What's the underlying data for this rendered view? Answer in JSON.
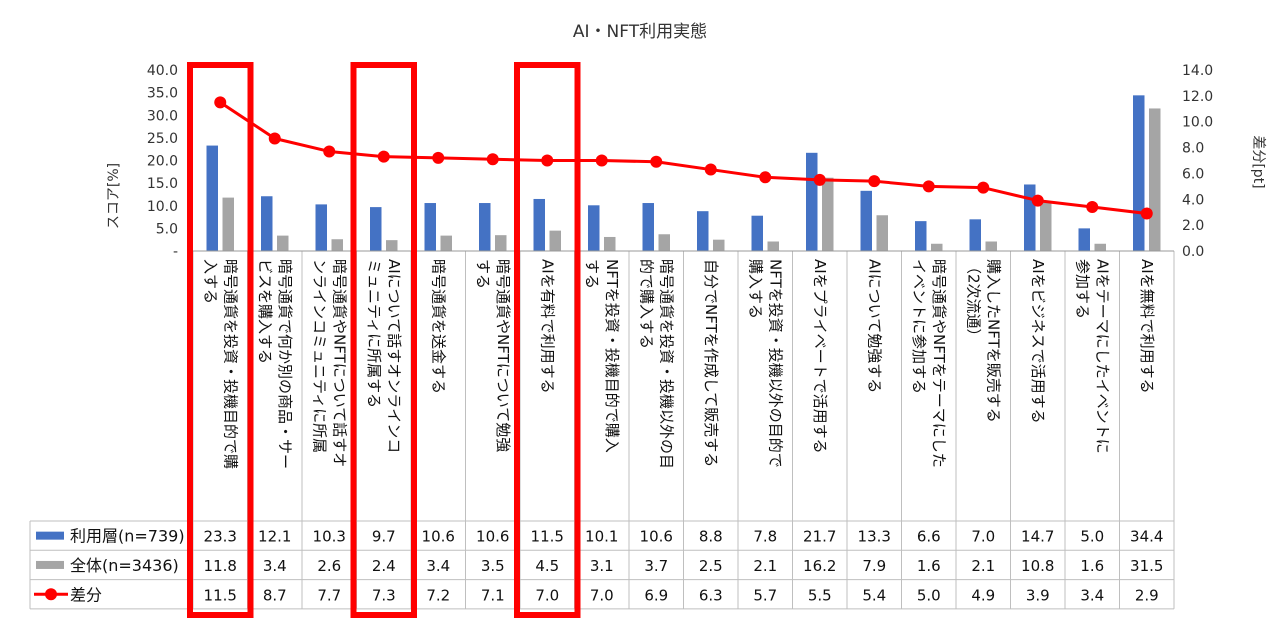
{
  "chart_data": {
    "type": "bar+line",
    "title": "AI・NFT利用実態",
    "ylabel": "スコア[%]",
    "y2label": "差分[pt]",
    "ylim": [
      0,
      40
    ],
    "y2lim": [
      0,
      14
    ],
    "y_ticks": [
      "-",
      "5.0",
      "10.0",
      "15.0",
      "20.0",
      "25.0",
      "30.0",
      "35.0",
      "40.0"
    ],
    "y2_ticks": [
      "0.0",
      "2.0",
      "4.0",
      "6.0",
      "8.0",
      "10.0",
      "12.0",
      "14.0"
    ],
    "categories": [
      [
        "暗号通貨を投資・投機目的で購",
        "入する"
      ],
      [
        "暗号通貨で何か別の商品・サー",
        "ビスを購入する"
      ],
      [
        "暗号通貨やNFTについて話すオ",
        "ンラインコミュニティに所属"
      ],
      [
        "AIについて話すオンラインコ",
        "ミュニティに所属する"
      ],
      [
        "暗号通貨を送金する"
      ],
      [
        "暗号通貨やNFTについて勉強",
        "する"
      ],
      [
        "AIを有料で利用する"
      ],
      [
        "NFTを投資・投機目的で購入",
        "する"
      ],
      [
        "暗号通貨を投資・投機以外の目",
        "的で購入する"
      ],
      [
        "自分でNFTを作成して販売する"
      ],
      [
        "NFTを投資・投機以外の目的で",
        "購入する"
      ],
      [
        "AIをプライベートで活用する"
      ],
      [
        "AIについて勉強する"
      ],
      [
        "暗号通貨やNFTをテーマにした",
        "イベントに参加する"
      ],
      [
        "購入したNFTを販売する",
        "（2次流通）"
      ],
      [
        "AIをビジネスで活用する"
      ],
      [
        "AIをテーマにしたイベントに",
        "参加する"
      ],
      [
        "AIを無料で利用する"
      ]
    ],
    "series": [
      {
        "name": "利用層(n=739)",
        "type": "bar",
        "axis": "left",
        "color": "#4472C4",
        "values": [
          23.3,
          12.1,
          10.3,
          9.7,
          10.6,
          10.6,
          11.5,
          10.1,
          10.6,
          8.8,
          7.8,
          21.7,
          13.3,
          6.6,
          7.0,
          14.7,
          5.0,
          34.4
        ]
      },
      {
        "name": "全体(n=3436)",
        "type": "bar",
        "axis": "left",
        "color": "#A5A5A5",
        "values": [
          11.8,
          3.4,
          2.6,
          2.4,
          3.4,
          3.5,
          4.5,
          3.1,
          3.7,
          2.5,
          2.1,
          16.2,
          7.9,
          1.6,
          2.1,
          10.8,
          1.6,
          31.5
        ]
      },
      {
        "name": "差分",
        "type": "line",
        "axis": "right",
        "color": "#FF0000",
        "values": [
          11.5,
          8.7,
          7.7,
          7.3,
          7.2,
          7.1,
          7.0,
          7.0,
          6.9,
          6.3,
          5.7,
          5.5,
          5.4,
          5.0,
          4.9,
          3.9,
          3.4,
          2.9
        ]
      }
    ],
    "table_rows": [
      [
        "23.3",
        "12.1",
        "10.3",
        "9.7",
        "10.6",
        "10.6",
        "11.5",
        "10.1",
        "10.6",
        "8.8",
        "7.8",
        "21.7",
        "13.3",
        "6.6",
        "7.0",
        "14.7",
        "5.0",
        "34.4"
      ],
      [
        "11.8",
        "3.4",
        "2.6",
        "2.4",
        "3.4",
        "3.5",
        "4.5",
        "3.1",
        "3.7",
        "2.5",
        "2.1",
        "16.2",
        "7.9",
        "1.6",
        "2.1",
        "10.8",
        "1.6",
        "31.5"
      ],
      [
        "11.5",
        "8.7",
        "7.7",
        "7.3",
        "7.2",
        "7.1",
        "7.0",
        "7.0",
        "6.9",
        "6.3",
        "5.7",
        "5.5",
        "5.4",
        "5.0",
        "4.9",
        "3.9",
        "3.4",
        "2.9"
      ]
    ],
    "highlighted_categories": [
      0,
      3,
      6
    ],
    "highlight_color": "#FF0000",
    "grid": false,
    "legend": "data-table"
  }
}
